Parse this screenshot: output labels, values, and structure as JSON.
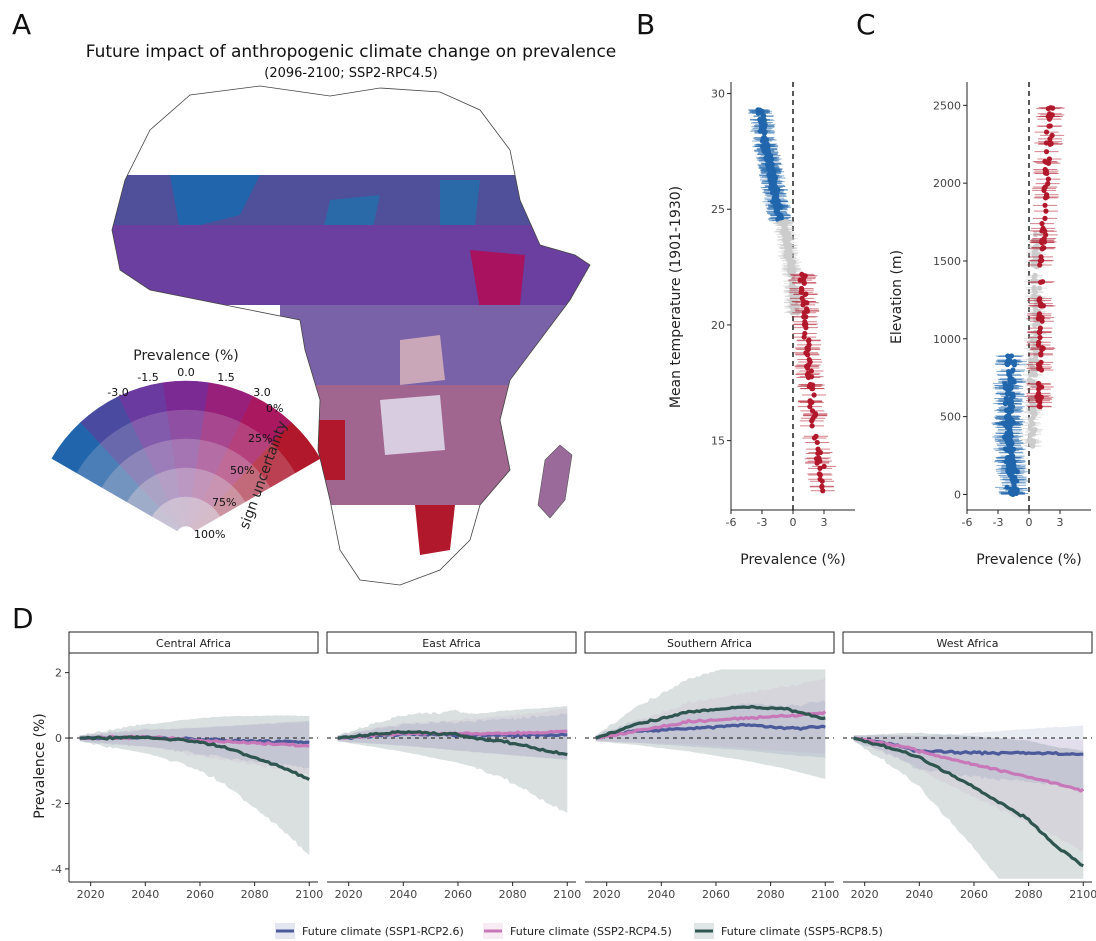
{
  "panels": {
    "A": "A",
    "B": "B",
    "C": "C",
    "D": "D"
  },
  "colors": {
    "blue": "#2166ac",
    "red": "#b2182b",
    "grey": "#cccccc",
    "ssp126": "#4a5a9a",
    "ssp245": "#c878b8",
    "ssp585": "#2f5550"
  },
  "map": {
    "title": "Future impact of anthropogenic climate change on prevalence",
    "subtitle": "(2096-2100; SSP2-RPC4.5)",
    "wheel": {
      "title": "Prevalence (%)",
      "prevalence_ticks": [
        "-3.0",
        "-1.5",
        "0.0",
        "1.5",
        "3.0"
      ],
      "uncertainty_ticks": [
        "0%",
        "25%",
        "50%",
        "75%",
        "100%"
      ],
      "uncertainty_label": "sign uncertainty"
    }
  },
  "chart_data": [
    {
      "id": "B",
      "type": "scatter",
      "xlabel": "Prevalence (%)",
      "ylabel": "Mean temperature (1901-1930)",
      "xlim": [
        -6,
        6
      ],
      "ylim": [
        12,
        30.5
      ],
      "xticks": [
        -6,
        -3,
        0,
        3
      ],
      "yticks": [
        15,
        20,
        25,
        30
      ],
      "reference_line_x": 0,
      "series": [
        {
          "values_y_range": [
            24.5,
            29.4
          ],
          "trend": [
            [
              24.5,
              -1.2
            ],
            [
              27,
              -2.3
            ],
            [
              29.4,
              -3.2
            ]
          ]
        },
        {
          "values_y_range": [
            20.5,
            24.5
          ],
          "trend": [
            [
              20.5,
              0.3
            ],
            [
              22.5,
              -0.2
            ],
            [
              24.5,
              -0.9
            ]
          ]
        },
        {
          "values_y_range": [
            12.7,
            22.2
          ],
          "trend": [
            [
              12.7,
              3.0
            ],
            [
              16,
              2.0
            ],
            [
              19,
              1.4
            ],
            [
              22.2,
              1.0
            ]
          ]
        }
      ]
    },
    {
      "id": "C",
      "type": "scatter",
      "xlabel": "Prevalence (%)",
      "ylabel": "Elevation (m)",
      "xlim": [
        -6,
        6
      ],
      "ylim": [
        -100,
        2650
      ],
      "xticks": [
        -6,
        -3,
        0,
        3
      ],
      "yticks": [
        0,
        500,
        1000,
        1500,
        2000,
        2500
      ],
      "reference_line_x": 0,
      "series": [
        {
          "values_y_range": [
            0,
            900
          ],
          "trend": [
            [
              0,
              -1.5
            ],
            [
              400,
              -2.0
            ],
            [
              900,
              -1.8
            ]
          ]
        },
        {
          "values_y_range": [
            300,
            1700
          ],
          "trend": [
            [
              300,
              0.2
            ],
            [
              1000,
              0.6
            ],
            [
              1700,
              0.7
            ]
          ]
        },
        {
          "values_y_range": [
            550,
            2550
          ],
          "trend": [
            [
              550,
              1.0
            ],
            [
              1500,
              1.2
            ],
            [
              2550,
              2.2
            ]
          ]
        }
      ]
    },
    {
      "id": "D",
      "type": "line",
      "ylabel": "Prevalence (%)",
      "xlim": [
        2015,
        2101
      ],
      "ylim": [
        -4.4,
        2.6
      ],
      "xticks": [
        2020,
        2040,
        2060,
        2080,
        2100
      ],
      "yticks": [
        -4,
        -2,
        0,
        2
      ],
      "facets": [
        {
          "name": "Central Africa",
          "series": [
            {
              "name": "Future climate (SSP1-RCP2.6)",
              "x": [
                2016,
                2040,
                2060,
                2080,
                2100
              ],
              "y": [
                0,
                0.02,
                -0.05,
                -0.1,
                -0.12
              ]
            },
            {
              "name": "Future climate (SSP2-RCP4.5)",
              "x": [
                2016,
                2040,
                2060,
                2080,
                2100
              ],
              "y": [
                0,
                0.03,
                -0.08,
                -0.15,
                -0.25
              ]
            },
            {
              "name": "Future climate (SSP5-RCP8.5)",
              "x": [
                2016,
                2040,
                2060,
                2070,
                2080,
                2090,
                2100
              ],
              "y": [
                0,
                0.02,
                -0.1,
                -0.3,
                -0.6,
                -0.9,
                -1.25
              ]
            }
          ]
        },
        {
          "name": "East Africa",
          "series": [
            {
              "name": "Future climate (SSP1-RCP2.6)",
              "x": [
                2016,
                2040,
                2060,
                2080,
                2100
              ],
              "y": [
                0,
                0.12,
                0.1,
                0.08,
                0.1
              ]
            },
            {
              "name": "Future climate (SSP2-RCP4.5)",
              "x": [
                2016,
                2040,
                2060,
                2080,
                2100
              ],
              "y": [
                0,
                0.15,
                0.13,
                0.15,
                0.2
              ]
            },
            {
              "name": "Future climate (SSP5-RCP8.5)",
              "x": [
                2016,
                2040,
                2060,
                2070,
                2080,
                2090,
                2100
              ],
              "y": [
                0,
                0.2,
                0.1,
                -0.05,
                -0.15,
                -0.35,
                -0.5
              ]
            }
          ]
        },
        {
          "name": "Southern Africa",
          "series": [
            {
              "name": "Future climate (SSP1-RCP2.6)",
              "x": [
                2016,
                2030,
                2050,
                2070,
                2090,
                2100
              ],
              "y": [
                0,
                0.2,
                0.3,
                0.4,
                0.3,
                0.35
              ]
            },
            {
              "name": "Future climate (SSP2-RCP4.5)",
              "x": [
                2016,
                2030,
                2050,
                2070,
                2090,
                2100
              ],
              "y": [
                0,
                0.2,
                0.5,
                0.6,
                0.7,
                0.8
              ]
            },
            {
              "name": "Future climate (SSP5-RCP8.5)",
              "x": [
                2016,
                2030,
                2050,
                2070,
                2085,
                2100
              ],
              "y": [
                0,
                0.4,
                0.8,
                0.95,
                0.9,
                0.6
              ]
            }
          ]
        },
        {
          "name": "West Africa",
          "series": [
            {
              "name": "Future climate (SSP1-RCP2.6)",
              "x": [
                2016,
                2030,
                2040,
                2060,
                2080,
                2100
              ],
              "y": [
                0,
                -0.2,
                -0.4,
                -0.45,
                -0.45,
                -0.5
              ]
            },
            {
              "name": "Future climate (SSP2-RCP4.5)",
              "x": [
                2016,
                2030,
                2040,
                2060,
                2080,
                2100
              ],
              "y": [
                0,
                -0.2,
                -0.4,
                -0.8,
                -1.2,
                -1.6
              ]
            },
            {
              "name": "Future climate (SSP5-RCP8.5)",
              "x": [
                2016,
                2030,
                2040,
                2060,
                2080,
                2090,
                2100
              ],
              "y": [
                0,
                -0.3,
                -0.6,
                -1.5,
                -2.5,
                -3.3,
                -3.9
              ]
            }
          ]
        }
      ],
      "legend": [
        "Future climate (SSP1-RCP2.6)",
        "Future climate (SSP2-RCP4.5)",
        "Future climate (SSP5-RCP8.5)"
      ]
    }
  ]
}
